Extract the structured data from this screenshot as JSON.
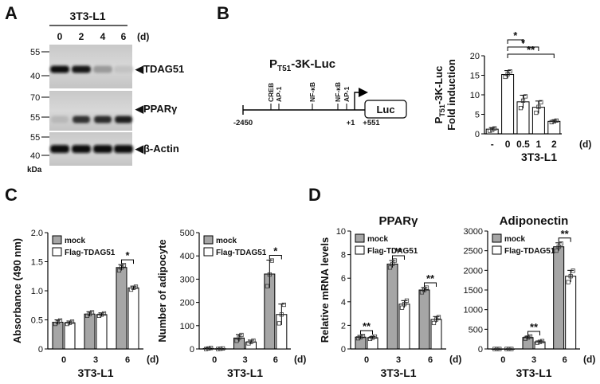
{
  "colors": {
    "gray_bar": "#a6a6a6",
    "white_bar": "#ffffff",
    "line": "#000000",
    "blot_bg": "#d0d0d0"
  },
  "panels": {
    "a": "A",
    "b": "B",
    "c": "C",
    "d": "D"
  },
  "panel_a": {
    "cell_line": "3T3-L1",
    "lanes": [
      "0",
      "2",
      "4",
      "6"
    ],
    "time_unit": "(d)",
    "blots": [
      {
        "label": "◀TDAG51",
        "markers": [
          "55",
          "40"
        ]
      },
      {
        "label": "◀PPARγ",
        "markers": [
          "70",
          "55"
        ]
      },
      {
        "label": "◀β-Actin",
        "markers": [
          "55",
          "40"
        ]
      }
    ],
    "kda": "kDa",
    "band_intensity": [
      [
        1.0,
        0.95,
        0.3,
        0.1
      ],
      [
        0.15,
        0.8,
        0.85,
        0.9
      ],
      [
        1.0,
        1.0,
        1.0,
        1.0
      ]
    ]
  },
  "panel_b_diagram": {
    "title_main": "P",
    "title_sub": "T51",
    "title_rest": "-3K-Luc",
    "sites": [
      "CREB",
      "AP-1",
      "NF-κB",
      "NF-κB",
      "AP-1"
    ],
    "positions": [
      "-2450",
      "+1",
      "+551"
    ],
    "reporter": "Luc"
  },
  "chart_data": [
    {
      "id": "B",
      "type": "bar",
      "categories": [
        "-",
        "0",
        "0.5",
        "1",
        "2"
      ],
      "values": [
        1.2,
        15.2,
        8.2,
        6.8,
        3.2
      ],
      "errors": [
        0.4,
        1.0,
        1.7,
        1.6,
        0.3
      ],
      "points": [
        [
          0.8,
          1.0,
          1.4
        ],
        [
          14.6,
          15.3,
          16.0
        ],
        [
          6.6,
          8.5,
          9.6
        ],
        [
          5.4,
          6.9,
          8.1
        ],
        [
          3.0,
          3.2,
          3.4
        ]
      ],
      "ylabel_main": "P",
      "ylabel_sub": "T51",
      "ylabel_rest": "-3K-Luc",
      "ylabel2": "Fold induction",
      "xlabel": "3T3-L1",
      "unit": "(d)",
      "ylim": [
        0,
        20
      ],
      "yticks": [
        "0",
        "5",
        "10",
        "15",
        "20"
      ],
      "significance": [
        "*",
        "*",
        "**"
      ]
    },
    {
      "id": "C1",
      "type": "bar",
      "categories": [
        "0",
        "3",
        "6"
      ],
      "series": [
        {
          "name": "mock",
          "values": [
            0.46,
            0.6,
            1.4
          ],
          "errors": [
            0.04,
            0.04,
            0.05
          ],
          "points": [
            [
              0.43,
              0.46,
              0.49
            ],
            [
              0.57,
              0.6,
              0.63
            ],
            [
              1.35,
              1.4,
              1.44
            ]
          ]
        },
        {
          "name": "Flag-TDAG51",
          "values": [
            0.45,
            0.59,
            1.05
          ],
          "errors": [
            0.03,
            0.03,
            0.03
          ],
          "points": [
            [
              0.43,
              0.45,
              0.47
            ],
            [
              0.57,
              0.59,
              0.61
            ],
            [
              1.02,
              1.05,
              1.07
            ]
          ]
        }
      ],
      "ylabel": "Absorbance (490 nm)",
      "xlabel": "3T3-L1",
      "unit": "(d)",
      "ylim": [
        0,
        2.0
      ],
      "yticks": [
        "0",
        "0.5",
        "1.0",
        "1.5",
        "2.0"
      ],
      "significance": "*"
    },
    {
      "id": "C2",
      "type": "bar",
      "categories": [
        "0",
        "3",
        "6"
      ],
      "series": [
        {
          "name": "mock",
          "values": [
            2,
            47,
            322
          ],
          "errors": [
            2,
            15,
            60
          ],
          "points": [
            [
              0,
              2,
              4
            ],
            [
              35,
              48,
              60
            ],
            [
              270,
              320,
              380
            ]
          ]
        },
        {
          "name": "Flag-TDAG51",
          "values": [
            1,
            30,
            148
          ],
          "errors": [
            1,
            8,
            45
          ],
          "points": [
            [
              0,
              1,
              2
            ],
            [
              24,
              30,
              36
            ],
            [
              110,
              148,
              190
            ]
          ]
        }
      ],
      "ylabel": "Number of adipocyte",
      "xlabel": "3T3-L1",
      "unit": "(d)",
      "ylim": [
        0,
        500
      ],
      "yticks": [
        "0",
        "100",
        "200",
        "300",
        "400",
        "500"
      ],
      "significance": "*"
    },
    {
      "id": "D1",
      "type": "bar",
      "title": "PPARγ",
      "categories": [
        "0",
        "3",
        "6"
      ],
      "series": [
        {
          "name": "mock",
          "values": [
            1.0,
            7.2,
            5.0
          ],
          "errors": [
            0.15,
            0.3,
            0.2
          ],
          "points": [
            [
              0.9,
              1.0,
              1.1
            ],
            [
              6.9,
              7.2,
              7.5
            ],
            [
              4.8,
              5.0,
              5.2
            ]
          ]
        },
        {
          "name": "Flag-TDAG51",
          "values": [
            0.95,
            3.8,
            2.5
          ],
          "errors": [
            0.1,
            0.3,
            0.25
          ],
          "points": [
            [
              0.85,
              0.95,
              1.05
            ],
            [
              3.5,
              3.8,
              4.1
            ],
            [
              2.2,
              2.5,
              2.7
            ]
          ]
        }
      ],
      "ylabel": "Relative mRNA levels",
      "xlabel": "3T3-L1",
      "unit": "(d)",
      "ylim": [
        0,
        10
      ],
      "yticks": [
        "0",
        "2",
        "4",
        "6",
        "8",
        "10"
      ],
      "significance": [
        "**",
        "**",
        "**"
      ]
    },
    {
      "id": "D2",
      "type": "bar",
      "title": "Adiponectin",
      "categories": [
        "0",
        "3",
        "6"
      ],
      "series": [
        {
          "name": "mock",
          "values": [
            0,
            290,
            2600
          ],
          "errors": [
            5,
            35,
            100
          ],
          "points": [
            [
              0,
              0,
              0
            ],
            [
              260,
              290,
              320
            ],
            [
              2500,
              2600,
              2680
            ]
          ]
        },
        {
          "name": "Flag-TDAG51",
          "values": [
            0,
            180,
            1850
          ],
          "errors": [
            5,
            25,
            150
          ],
          "points": [
            [
              0,
              0,
              0
            ],
            [
              160,
              180,
              200
            ],
            [
              1700,
              1850,
              1990
            ]
          ]
        }
      ],
      "xlabel": "3T3-L1",
      "unit": "(d)",
      "ylim": [
        0,
        3000
      ],
      "yticks": [
        "0",
        "500",
        "1000",
        "1500",
        "2000",
        "2500",
        "3000"
      ],
      "significance": [
        "**",
        "**"
      ]
    }
  ]
}
